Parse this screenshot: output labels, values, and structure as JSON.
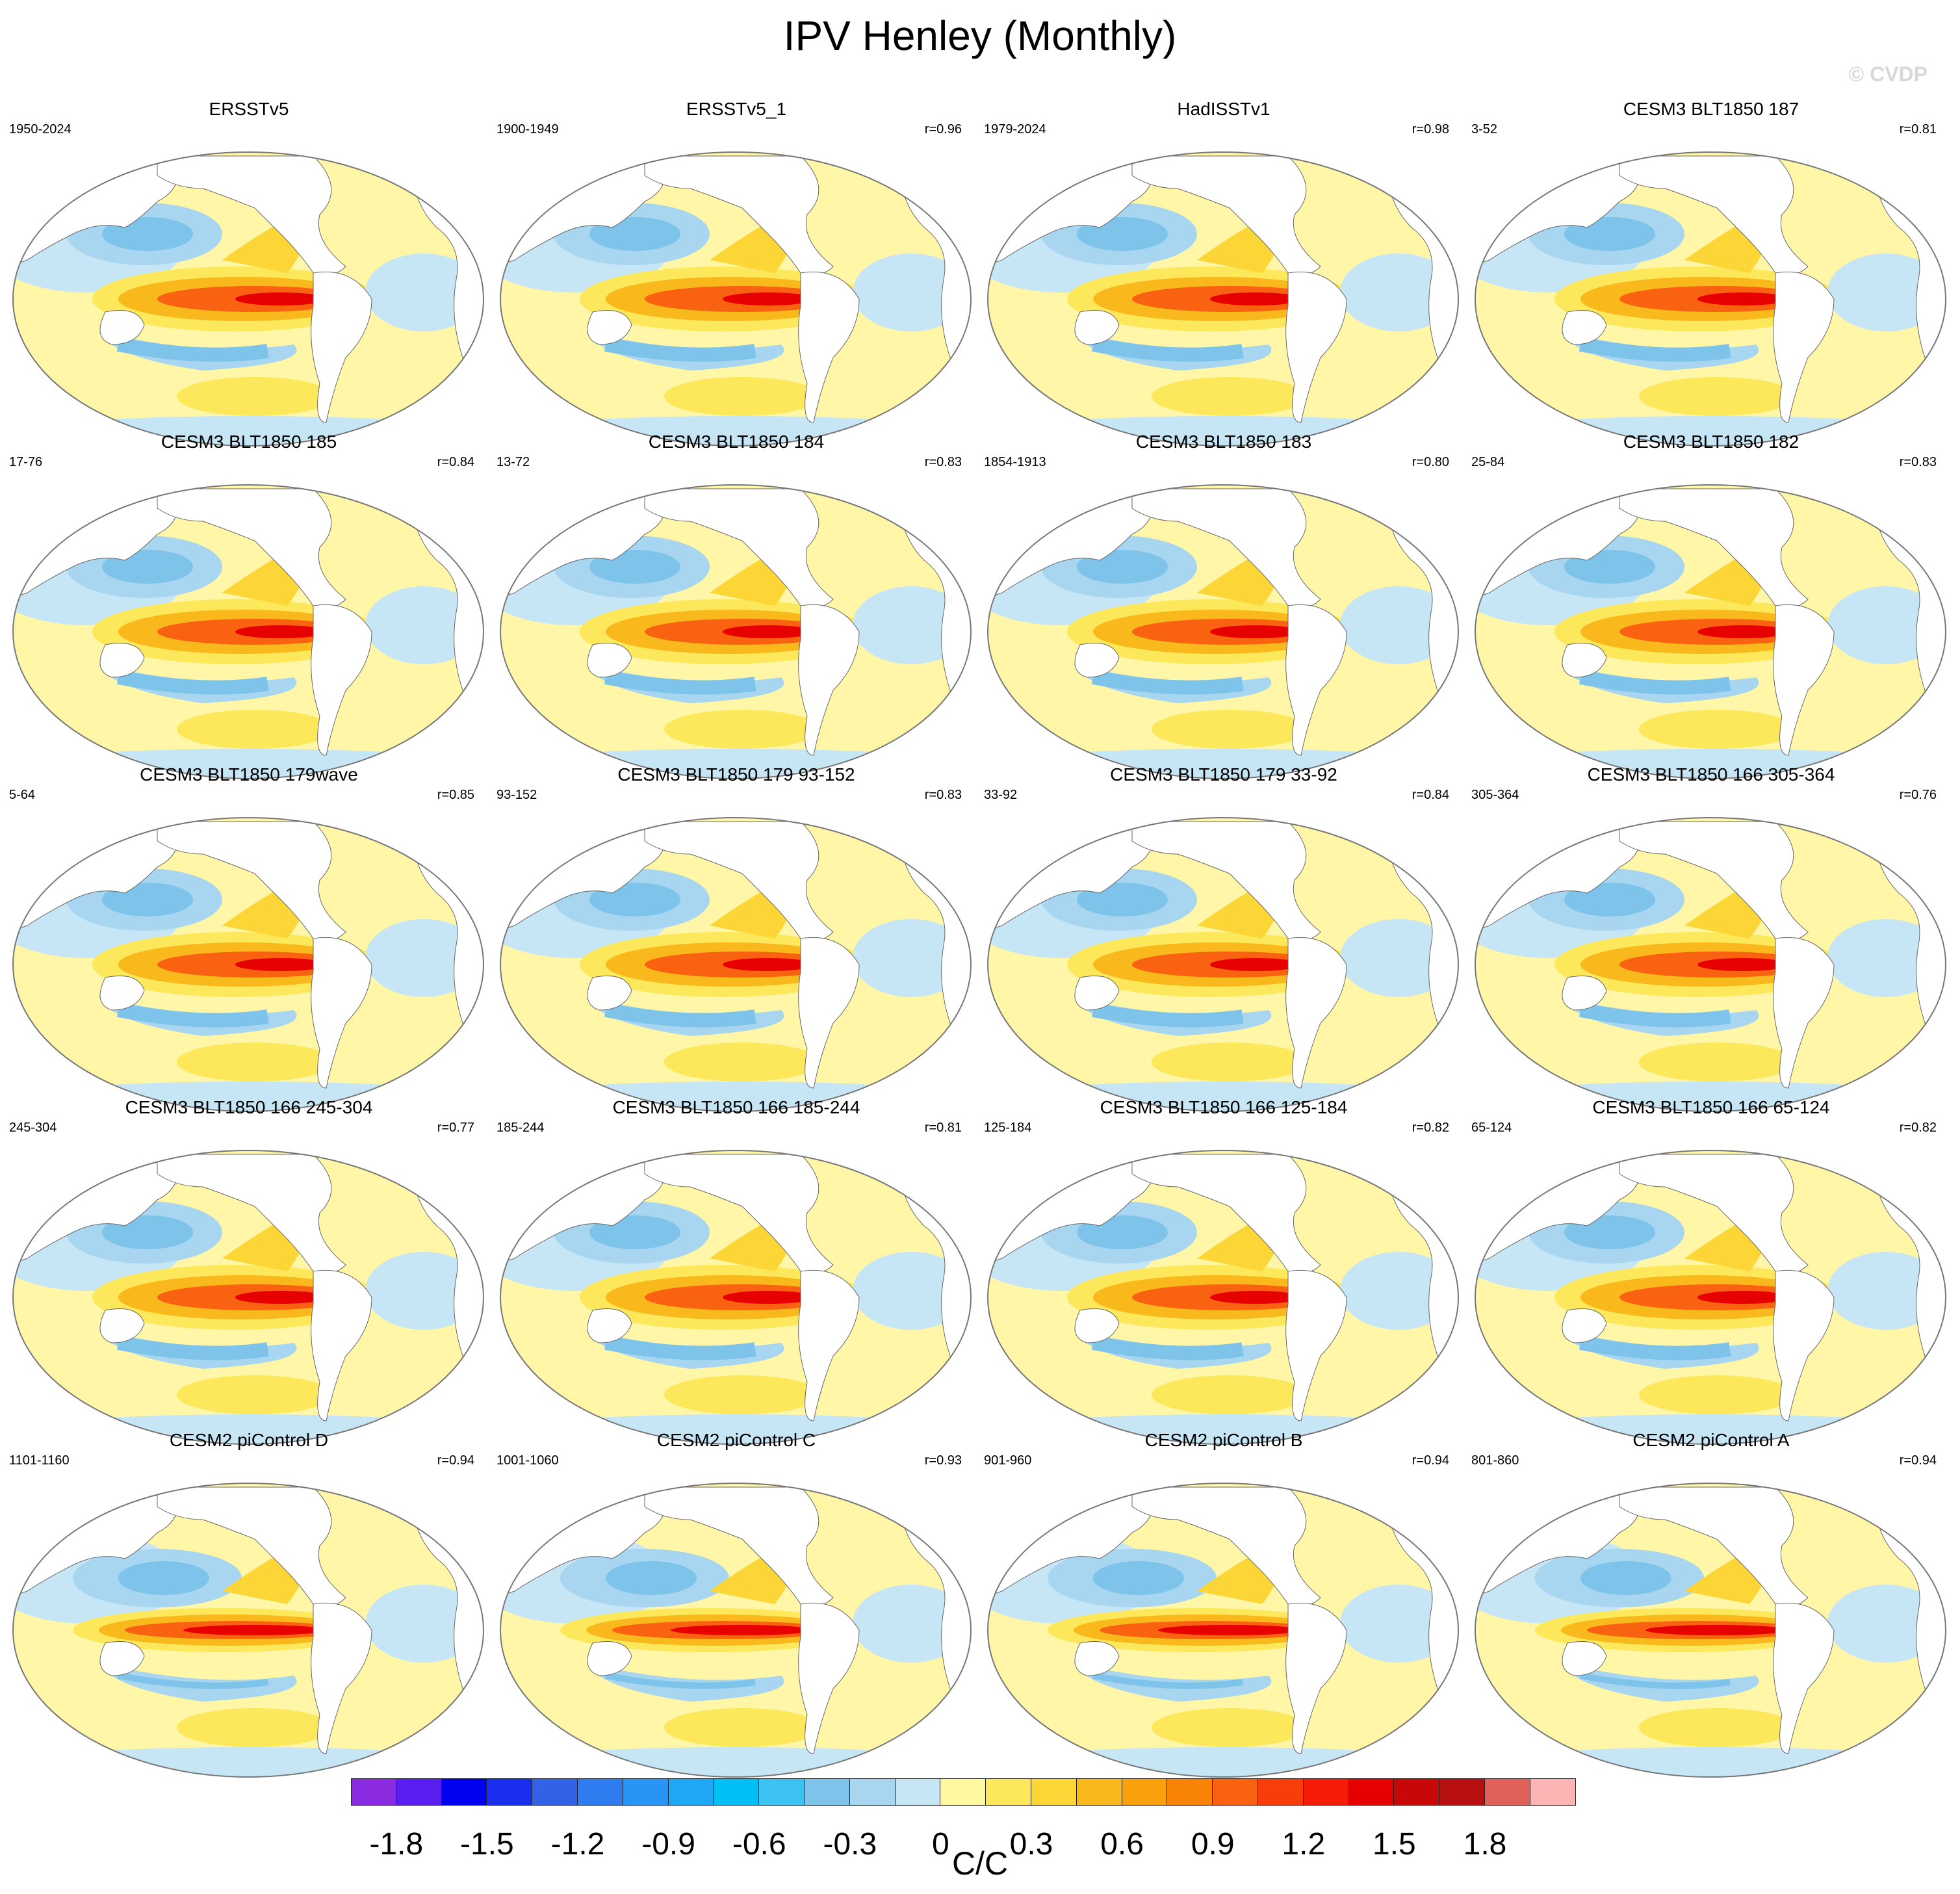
{
  "title": "IPV Henley (Monthly)",
  "watermark": "© CVDP",
  "panels": [
    {
      "title": "ERSSTv5",
      "years": "1950-2024",
      "r": ""
    },
    {
      "title": "ERSSTv5_1",
      "years": "1900-1949",
      "r": "r=0.96"
    },
    {
      "title": "HadISSTv1",
      "years": "1979-2024",
      "r": "r=0.98"
    },
    {
      "title": "CESM3 BLT1850 187",
      "years": "3-52",
      "r": "r=0.81"
    },
    {
      "title": "CESM3 BLT1850 185",
      "years": "17-76",
      "r": "r=0.84"
    },
    {
      "title": "CESM3 BLT1850 184",
      "years": "13-72",
      "r": "r=0.83"
    },
    {
      "title": "CESM3 BLT1850 183",
      "years": "1854-1913",
      "r": "r=0.80"
    },
    {
      "title": "CESM3 BLT1850 182",
      "years": "25-84",
      "r": "r=0.83"
    },
    {
      "title": "CESM3 BLT1850 179wave",
      "years": "5-64",
      "r": "r=0.85"
    },
    {
      "title": "CESM3 BLT1850 179 93-152",
      "years": "93-152",
      "r": "r=0.83"
    },
    {
      "title": "CESM3 BLT1850 179 33-92",
      "years": "33-92",
      "r": "r=0.84"
    },
    {
      "title": "CESM3 BLT1850 166 305-364",
      "years": "305-364",
      "r": "r=0.76"
    },
    {
      "title": "CESM3 BLT1850 166 245-304",
      "years": "245-304",
      "r": "r=0.77"
    },
    {
      "title": "CESM3 BLT1850 166 185-244",
      "years": "185-244",
      "r": "r=0.81"
    },
    {
      "title": "CESM3 BLT1850 166 125-184",
      "years": "125-184",
      "r": "r=0.82"
    },
    {
      "title": "CESM3 BLT1850 166 65-124",
      "years": "65-124",
      "r": "r=0.82"
    },
    {
      "title": "CESM2 piControl D",
      "years": "1101-1160",
      "r": "r=0.94"
    },
    {
      "title": "CESM2 piControl C",
      "years": "1001-1060",
      "r": "r=0.93"
    },
    {
      "title": "CESM2 piControl B",
      "years": "901-960",
      "r": "r=0.94"
    },
    {
      "title": "CESM2 piControl A",
      "years": "801-860",
      "r": "r=0.94"
    }
  ],
  "colorbar": {
    "units": "C/C",
    "colors": [
      "#8a2be2",
      "#5a1ef0",
      "#0000f0",
      "#1a2ef0",
      "#3262e6",
      "#2f7cf0",
      "#2894f5",
      "#1ea8f5",
      "#00bff5",
      "#3cc2f0",
      "#7ec3ea",
      "#a8d6f0",
      "#c6e6f5",
      "#fff8a0",
      "#fce85a",
      "#fcd637",
      "#f9b81c",
      "#f9a00a",
      "#f88305",
      "#f86210",
      "#f83c0a",
      "#f61c08",
      "#e60000",
      "#c80808",
      "#b81010",
      "#e0605a",
      "#fcb4b4"
    ],
    "labels": [
      "-1.8",
      "-1.5",
      "-1.2",
      "-0.9",
      "-0.6",
      "-0.3",
      "0",
      "0.3",
      "0.6",
      "0.9",
      "1.2",
      "1.5",
      "1.8"
    ]
  }
}
